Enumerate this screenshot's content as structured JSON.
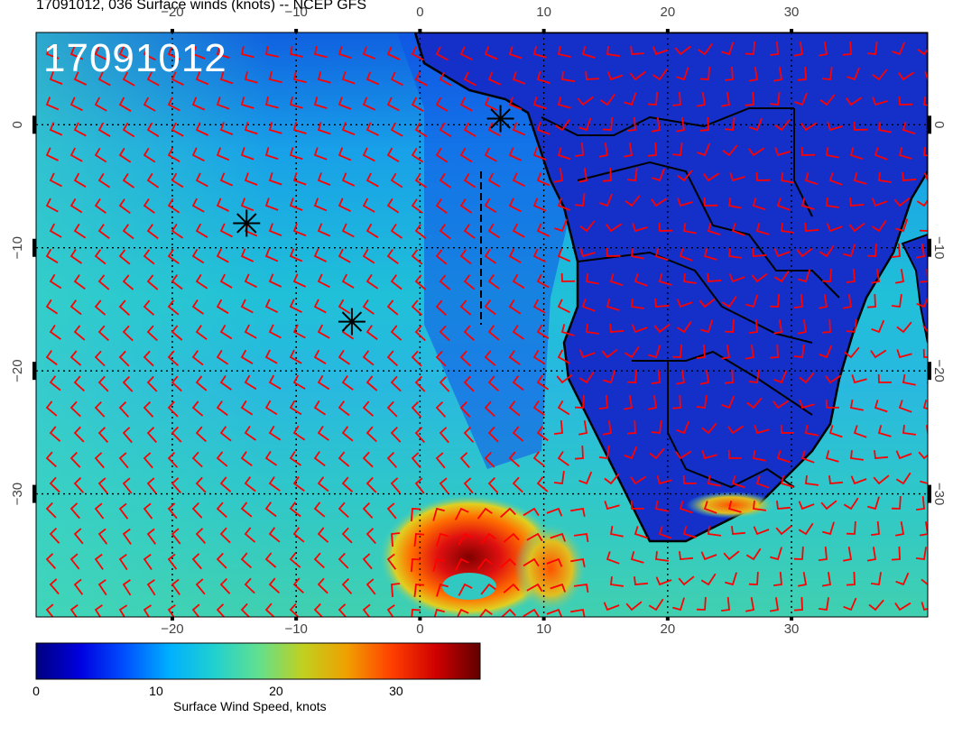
{
  "header": {
    "title": "17091012, 036 Surface winds (knots) -- NCEP GFS"
  },
  "stamp": {
    "text": "17091012"
  },
  "axes": {
    "lon_min": -31,
    "lon_max": 41,
    "lat_min": -40,
    "lat_max": 7.5,
    "lon_ticks": [
      {
        "value": -20,
        "label": "−20"
      },
      {
        "value": -10,
        "label": "−10"
      },
      {
        "value": 0,
        "label": "0"
      },
      {
        "value": 10,
        "label": "10"
      },
      {
        "value": 20,
        "label": "20"
      },
      {
        "value": 30,
        "label": "30"
      }
    ],
    "lat_ticks": [
      {
        "value": 0,
        "label": "0"
      },
      {
        "value": -10,
        "label": "−10"
      },
      {
        "value": -20,
        "label": "−20"
      },
      {
        "value": -30,
        "label": "−30"
      }
    ],
    "grid": true
  },
  "colorbar": {
    "title": "Surface Wind Speed, knots",
    "min": 0,
    "max": 37,
    "ticks": [
      {
        "value": 0,
        "label": "0"
      },
      {
        "value": 10,
        "label": "10"
      },
      {
        "value": 20,
        "label": "20"
      },
      {
        "value": 30,
        "label": "30"
      }
    ],
    "colors": [
      "#00007f",
      "#0000e0",
      "#0050ff",
      "#00b0ff",
      "#20d0d0",
      "#60e090",
      "#c0d020",
      "#f0a000",
      "#ff4000",
      "#d00000",
      "#600000"
    ]
  },
  "markers": [
    {
      "lon": 6.5,
      "lat": 0.5
    },
    {
      "lon": -14,
      "lat": -8
    },
    {
      "lon": -5.5,
      "lat": -16
    }
  ],
  "barb_color": "#ff0000"
}
